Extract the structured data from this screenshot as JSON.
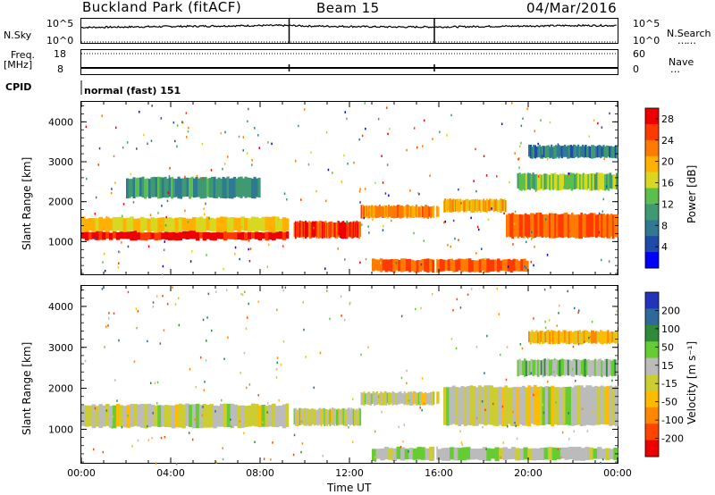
{
  "header": {
    "site": "Buckland Park (fitACF)",
    "beam": "Beam 15",
    "date": "04/Mar/2016"
  },
  "params": {
    "nsky_label": "N.Sky",
    "nsky_ticks": [
      "10^5",
      "10^0"
    ],
    "nsearch_label": "N.Search",
    "freq_label": "Freq.",
    "freq_unit": "[MHz]",
    "freq_ticks": [
      "18",
      "8"
    ],
    "nave_label": "Nave",
    "nave_ticks": [
      "60",
      "0"
    ],
    "cpid_label": "CPID",
    "cpid_value": "normal (fast) 151"
  },
  "colors": {
    "power": [
      "#0000ff",
      "#1e4aa8",
      "#2f7a92",
      "#3f9a72",
      "#5bbf4e",
      "#d8d820",
      "#ffb000",
      "#ff7a00",
      "#ff3a00",
      "#ee0000"
    ],
    "velocity": [
      "#2233bb",
      "#2d6a9a",
      "#2f8a3a",
      "#66cc33",
      "#bbbbbb",
      "#cccc33",
      "#ffbb00",
      "#ff8800",
      "#ff4400",
      "#ee0000"
    ]
  },
  "chart_data": [
    {
      "type": "line",
      "title": "N.Sky",
      "x": [
        0,
        2,
        4,
        6,
        8,
        9.3,
        10,
        12,
        14,
        15.8,
        16,
        18,
        20,
        22,
        24
      ],
      "y": [
        3.2,
        3.3,
        3.4,
        3.5,
        3.6,
        3.6,
        3.5,
        3.4,
        3.3,
        3.3,
        3.3,
        3.4,
        3.5,
        3.6,
        3.6
      ],
      "ylim": [
        0,
        5
      ]
    },
    {
      "type": "heatmap",
      "title": "Power [dB]",
      "xlabel": "Time UT",
      "ylabel": "Slant Range [km]",
      "xticks": [
        "00:00",
        "04:00",
        "08:00",
        "12:00",
        "16:00",
        "20:00",
        "00:00"
      ],
      "yticks": [
        "1000",
        "2000",
        "3000",
        "4000"
      ],
      "xlim": [
        0,
        24
      ],
      "ylim": [
        180,
        4500
      ],
      "colorbar": {
        "label": "Power [dB]",
        "ticks": [
          "4",
          "8",
          "12",
          "16",
          "20",
          "24",
          "28"
        ],
        "range": [
          0,
          30
        ]
      },
      "bands": [
        {
          "t0": 0,
          "t1": 9.3,
          "r0": 1050,
          "r1": 1250,
          "value": 28
        },
        {
          "t0": 0,
          "t1": 9.3,
          "r0": 1250,
          "r1": 1600,
          "value": 18
        },
        {
          "t0": 2,
          "t1": 8,
          "r0": 2100,
          "r1": 2600,
          "value": 10
        },
        {
          "t0": 9.5,
          "t1": 12.5,
          "r0": 1100,
          "r1": 1500,
          "value": 26
        },
        {
          "t0": 12.5,
          "t1": 16,
          "r0": 1600,
          "r1": 1900,
          "value": 22
        },
        {
          "t0": 16.2,
          "t1": 19,
          "r0": 1750,
          "r1": 2050,
          "value": 20
        },
        {
          "t0": 19,
          "t1": 24,
          "r0": 1100,
          "r1": 1700,
          "value": 24
        },
        {
          "t0": 19.5,
          "t1": 24,
          "r0": 2300,
          "r1": 2700,
          "value": 14
        },
        {
          "t0": 20,
          "t1": 24,
          "r0": 3100,
          "r1": 3400,
          "value": 8
        },
        {
          "t0": 13,
          "t1": 20,
          "r0": 250,
          "r1": 550,
          "value": 24
        }
      ]
    },
    {
      "type": "heatmap",
      "title": "Velocity [m s^-1]",
      "xlabel": "Time UT",
      "ylabel": "Slant Range [km]",
      "xticks": [
        "00:00",
        "04:00",
        "08:00",
        "12:00",
        "16:00",
        "20:00",
        "00:00"
      ],
      "yticks": [
        "1000",
        "2000",
        "3000",
        "4000"
      ],
      "xlim": [
        0,
        24
      ],
      "ylim": [
        180,
        4500
      ],
      "colorbar": {
        "label": "Velocity [m s^-1]",
        "ticks": [
          "200",
          "100",
          "50",
          "15",
          "-15",
          "-50",
          "-100",
          "-200"
        ],
        "range": [
          -250,
          250
        ]
      },
      "bands": [
        {
          "t0": 0,
          "t1": 9.3,
          "r0": 1050,
          "r1": 1600,
          "value": 0
        },
        {
          "t0": 9.5,
          "t1": 12.5,
          "r0": 1100,
          "r1": 1500,
          "value": 0
        },
        {
          "t0": 12.5,
          "t1": 16,
          "r0": 1600,
          "r1": 1900,
          "value": 0
        },
        {
          "t0": 16.2,
          "t1": 24,
          "r0": 1100,
          "r1": 2050,
          "value": 0
        },
        {
          "t0": 19.5,
          "t1": 24,
          "r0": 2300,
          "r1": 2700,
          "value": 60
        },
        {
          "t0": 20,
          "t1": 24,
          "r0": 3100,
          "r1": 3400,
          "value": -80
        },
        {
          "t0": 13,
          "t1": 24,
          "r0": 250,
          "r1": 550,
          "value": 40
        }
      ]
    }
  ],
  "axes": {
    "time_label": "Time UT",
    "range_label": "Slant Range [km]",
    "power_cb_label": "Power [dB]",
    "velocity_cb_label": "Velocity [m s⁻¹]"
  }
}
